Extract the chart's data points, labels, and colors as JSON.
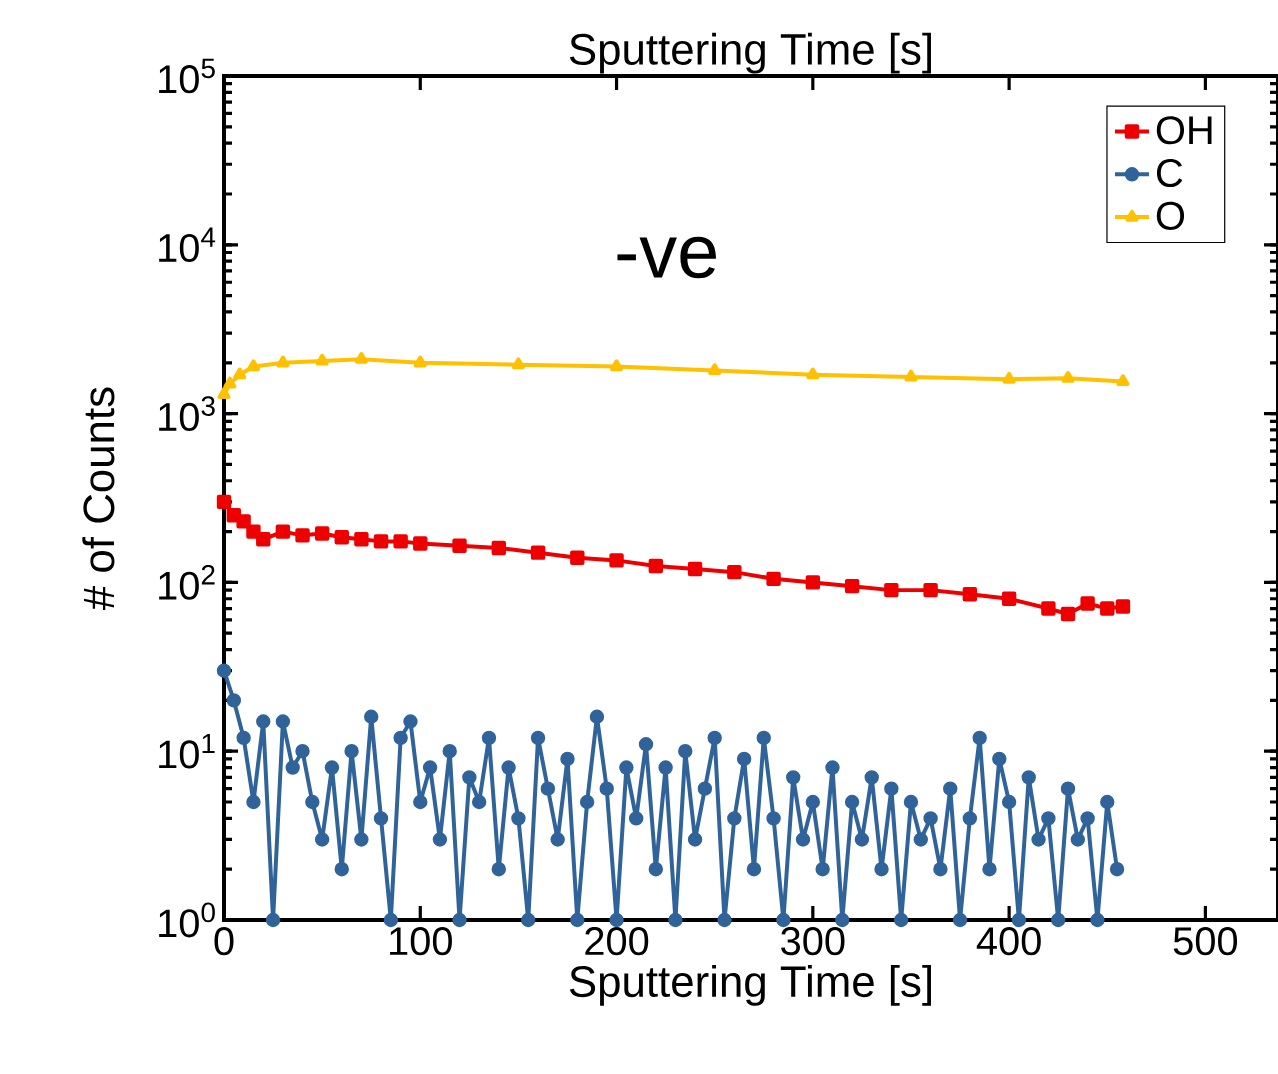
{
  "chart_data": {
    "type": "line",
    "xlabel": "Sputtering Time [s]",
    "ylabel": "# of Counts",
    "x2label": "Sputtering Time [s]",
    "annotations": [
      "-ve"
    ],
    "log": "y",
    "legend": "top right",
    "xlim": [
      0,
      537
    ],
    "xticks": [
      0,
      100,
      200,
      300,
      400,
      500
    ],
    "ylim": [
      1,
      100000
    ],
    "yticks": [
      {
        "value": 1,
        "label": "10$^{0}$"
      },
      {
        "value": 10,
        "label": "10$^{1}$"
      },
      {
        "value": 100,
        "label": "10$^{2}$"
      },
      {
        "value": 1000,
        "label": "10$^{3}$"
      },
      {
        "value": 10000,
        "label": "10$^{4}$"
      },
      {
        "value": 100000,
        "label": "10$^{5}$"
      }
    ],
    "series": [
      {
        "name": "OH",
        "color": "#ee0000",
        "marker": "square",
        "x": [
          0,
          5,
          10,
          15,
          20,
          30,
          40,
          50,
          60,
          70,
          80,
          90,
          100,
          120,
          140,
          160,
          180,
          200,
          220,
          240,
          260,
          280,
          300,
          320,
          340,
          360,
          380,
          400,
          420,
          430,
          440,
          450,
          458
        ],
        "values": [
          300,
          250,
          230,
          200,
          180,
          200,
          190,
          195,
          185,
          180,
          175,
          175,
          170,
          165,
          160,
          150,
          140,
          135,
          125,
          120,
          115,
          105,
          100,
          95,
          90,
          90,
          85,
          80,
          70,
          65,
          75,
          70,
          72
        ]
      },
      {
        "name": "C",
        "color": "#2f6399",
        "marker": "circle",
        "x": [
          0,
          5,
          10,
          15,
          20,
          25,
          30,
          35,
          40,
          45,
          50,
          55,
          60,
          65,
          70,
          75,
          80,
          85,
          90,
          95,
          100,
          105,
          110,
          115,
          120,
          125,
          130,
          135,
          140,
          145,
          150,
          155,
          160,
          165,
          170,
          175,
          180,
          185,
          190,
          195,
          200,
          205,
          210,
          215,
          220,
          225,
          230,
          235,
          240,
          245,
          250,
          255,
          260,
          265,
          270,
          275,
          280,
          285,
          290,
          295,
          300,
          305,
          310,
          315,
          320,
          325,
          330,
          335,
          340,
          345,
          350,
          355,
          360,
          365,
          370,
          375,
          380,
          385,
          390,
          395,
          400,
          405,
          410,
          415,
          420,
          425,
          430,
          435,
          440,
          445,
          450,
          455
        ],
        "values": [
          30,
          20,
          12,
          5,
          15,
          1,
          15,
          8,
          10,
          5,
          3,
          8,
          2,
          10,
          3,
          16,
          4,
          1,
          12,
          15,
          5,
          8,
          3,
          10,
          1,
          7,
          5,
          12,
          2,
          8,
          4,
          1,
          12,
          6,
          3,
          9,
          1,
          5,
          16,
          6,
          1,
          8,
          4,
          11,
          2,
          8,
          1,
          10,
          3,
          6,
          12,
          1,
          4,
          9,
          2,
          12,
          4,
          1,
          7,
          3,
          5,
          2,
          8,
          1,
          5,
          3,
          7,
          2,
          6,
          1,
          5,
          3,
          4,
          2,
          6,
          1,
          4,
          12,
          2,
          9,
          5,
          1,
          7,
          3,
          4,
          1,
          6,
          3,
          4,
          1,
          5,
          2
        ]
      },
      {
        "name": "O",
        "color": "#ffc000",
        "marker": "triangle",
        "x": [
          0,
          3,
          8,
          15,
          30,
          50,
          70,
          100,
          150,
          200,
          250,
          300,
          350,
          400,
          430,
          458
        ],
        "values": [
          1300,
          1500,
          1700,
          1900,
          2000,
          2050,
          2100,
          2000,
          1950,
          1900,
          1800,
          1700,
          1650,
          1600,
          1620,
          1550
        ]
      }
    ]
  }
}
